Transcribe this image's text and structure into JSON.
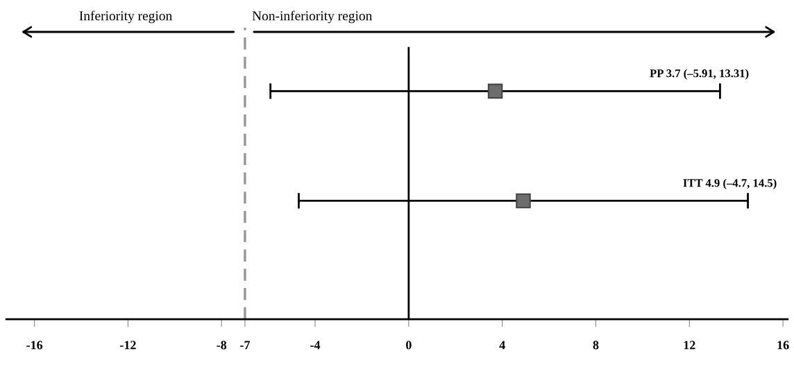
{
  "chart_data": {
    "type": "scatter",
    "orientation": "horizontal",
    "categories": [
      null,
      null
    ],
    "values": [
      3.7,
      4.9
    ],
    "errors": [
      [
        -5.91,
        13.31
      ],
      [
        -4.7,
        14.5
      ]
    ],
    "color": "#6d6d6d",
    "marker": "square",
    "xlim": [
      -17.2,
      16.2
    ],
    "xticks": [
      -16,
      -12,
      -8,
      -7,
      -4,
      0,
      4,
      8,
      12,
      16
    ],
    "ref_lines": [
      {
        "axis": "x",
        "value": -7,
        "color": "#999999",
        "line_style": "dashed"
      },
      {
        "axis": "x",
        "value": 0,
        "color": "#000000",
        "line_style": "solid"
      }
    ],
    "annotations": [
      "Inferiority region",
      "Non-inferiority region",
      "PP 3.7 (–5.91, 13.31)",
      "ITT 4.9 (–4.7, 14.5)"
    ],
    "tick_labels": "x"
  }
}
